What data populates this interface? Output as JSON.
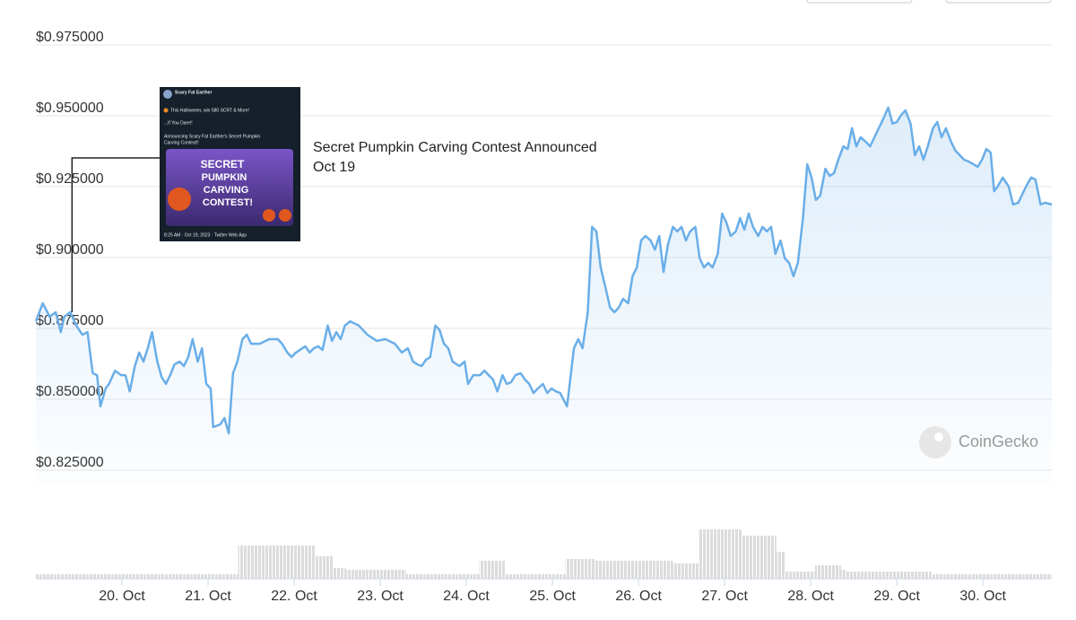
{
  "chart_data": {
    "type": "line",
    "xlim": [
      19,
      30.8
    ],
    "xticks": [
      {
        "value": 20,
        "label": "20. Oct"
      },
      {
        "value": 21,
        "label": "21. Oct"
      },
      {
        "value": 22,
        "label": "22. Oct"
      },
      {
        "value": 23,
        "label": "23. Oct"
      },
      {
        "value": 24,
        "label": "24. Oct"
      },
      {
        "value": 25,
        "label": "25. Oct"
      },
      {
        "value": 26,
        "label": "26. Oct"
      },
      {
        "value": 27,
        "label": "27. Oct"
      },
      {
        "value": 28,
        "label": "28. Oct"
      },
      {
        "value": 29,
        "label": "29. Oct"
      },
      {
        "value": 30,
        "label": "30. Oct"
      }
    ],
    "ylim": [
      0.82,
      0.975
    ],
    "yticks": [
      {
        "value": 0.975,
        "label": "$0.975000"
      },
      {
        "value": 0.95,
        "label": "$0.950000"
      },
      {
        "value": 0.925,
        "label": "$0.925000"
      },
      {
        "value": 0.9,
        "label": "$0.900000"
      },
      {
        "value": 0.875,
        "label": "$0.875000"
      },
      {
        "value": 0.85,
        "label": "$0.850000"
      },
      {
        "value": 0.825,
        "label": "$0.825000"
      }
    ],
    "grid": true,
    "series": [
      {
        "color": "#6aaee8",
        "x": [
          19.0,
          19.08,
          19.16,
          19.23,
          19.29,
          19.33,
          19.4,
          19.47,
          19.54,
          19.6,
          19.66,
          19.71,
          19.75,
          19.81,
          19.85,
          19.92,
          19.99,
          20.04,
          20.09,
          20.15,
          20.2,
          20.25,
          20.3,
          20.35,
          20.41,
          20.46,
          20.51,
          20.56,
          20.61,
          20.67,
          20.72,
          20.77,
          20.82,
          20.88,
          20.93,
          20.98,
          21.03,
          21.06,
          21.14,
          21.19,
          21.24,
          21.29,
          21.34,
          21.4,
          21.45,
          21.5,
          21.6,
          21.71,
          21.81,
          21.86,
          21.92,
          21.97,
          22.02,
          22.13,
          22.18,
          22.23,
          22.28,
          22.33,
          22.39,
          22.44,
          22.49,
          22.54,
          22.59,
          22.65,
          22.75,
          22.85,
          22.96,
          23.06,
          23.17,
          23.25,
          23.32,
          23.38,
          23.43,
          23.48,
          23.53,
          23.58,
          23.64,
          23.69,
          23.74,
          23.79,
          23.84,
          23.92,
          23.98,
          24.02,
          24.08,
          24.16,
          24.21,
          24.26,
          24.31,
          24.36,
          24.42,
          24.47,
          24.52,
          24.57,
          24.63,
          24.68,
          24.73,
          24.78,
          24.83,
          24.89,
          24.94,
          24.99,
          25.04,
          25.09,
          25.17,
          25.25,
          25.3,
          25.35,
          25.41,
          25.46,
          25.51,
          25.56,
          25.61,
          25.67,
          25.72,
          25.77,
          25.82,
          25.88,
          25.93,
          25.98,
          26.03,
          26.08,
          26.14,
          26.19,
          26.24,
          26.29,
          26.34,
          26.4,
          26.45,
          26.5,
          26.55,
          26.6,
          26.66,
          26.71,
          26.76,
          26.81,
          26.86,
          26.92,
          26.97,
          27.02,
          27.07,
          27.13,
          27.18,
          27.23,
          27.28,
          27.33,
          27.39,
          27.44,
          27.49,
          27.54,
          27.59,
          27.65,
          27.7,
          27.75,
          27.8,
          27.85,
          27.91,
          27.96,
          28.01,
          28.06,
          28.11,
          28.17,
          28.22,
          28.27,
          28.32,
          28.38,
          28.43,
          28.48,
          28.53,
          28.58,
          28.64,
          28.69,
          28.74,
          28.79,
          28.84,
          28.9,
          28.95,
          29.0,
          29.05,
          29.1,
          29.16,
          29.21,
          29.26,
          29.31,
          29.36,
          29.42,
          29.47,
          29.52,
          29.57,
          29.63,
          29.68,
          29.73,
          29.78,
          29.83,
          29.89,
          29.94,
          29.99,
          30.04,
          30.09,
          30.13,
          30.17,
          30.23,
          30.3,
          30.35,
          30.41,
          30.46,
          30.51,
          30.56,
          30.61,
          30.67,
          30.72,
          30.8
        ],
        "values": [
          0.8775,
          0.8839,
          0.8791,
          0.8807,
          0.8737,
          0.8791,
          0.8807,
          0.876,
          0.8728,
          0.8737,
          0.8592,
          0.8585,
          0.8475,
          0.8538,
          0.8554,
          0.8601,
          0.8585,
          0.8585,
          0.8528,
          0.8617,
          0.8665,
          0.8633,
          0.868,
          0.8737,
          0.8633,
          0.8579,
          0.8554,
          0.8585,
          0.8623,
          0.8633,
          0.8617,
          0.8649,
          0.8712,
          0.8633,
          0.868,
          0.8554,
          0.8538,
          0.8402,
          0.8411,
          0.8434,
          0.838,
          0.8592,
          0.8633,
          0.8712,
          0.8728,
          0.8696,
          0.8696,
          0.8712,
          0.8712,
          0.8696,
          0.8665,
          0.8649,
          0.8665,
          0.8687,
          0.8665,
          0.868,
          0.8687,
          0.8674,
          0.876,
          0.8706,
          0.8737,
          0.8712,
          0.876,
          0.8775,
          0.876,
          0.8728,
          0.8706,
          0.8712,
          0.8696,
          0.8665,
          0.868,
          0.8633,
          0.8623,
          0.8617,
          0.8639,
          0.8649,
          0.876,
          0.8744,
          0.8696,
          0.868,
          0.8633,
          0.8617,
          0.8633,
          0.8554,
          0.8585,
          0.8585,
          0.8601,
          0.8585,
          0.857,
          0.8528,
          0.8585,
          0.8554,
          0.856,
          0.8585,
          0.8592,
          0.857,
          0.8554,
          0.8522,
          0.8538,
          0.8554,
          0.8522,
          0.8538,
          0.8528,
          0.8522,
          0.8475,
          0.868,
          0.8712,
          0.868,
          0.8807,
          0.9108,
          0.9092,
          0.8965,
          0.8902,
          0.8823,
          0.8807,
          0.8823,
          0.8854,
          0.8839,
          0.8934,
          0.8965,
          0.906,
          0.9076,
          0.906,
          0.9028,
          0.9076,
          0.8949,
          0.9044,
          0.9108,
          0.9092,
          0.9108,
          0.906,
          0.9092,
          0.9108,
          0.8997,
          0.8965,
          0.8981,
          0.8965,
          0.9013,
          0.9155,
          0.9123,
          0.9076,
          0.9092,
          0.9139,
          0.9098,
          0.9155,
          0.9108,
          0.9076,
          0.9108,
          0.9092,
          0.9108,
          0.9013,
          0.906,
          0.8997,
          0.8981,
          0.8934,
          0.8981,
          0.9139,
          0.9329,
          0.9282,
          0.9203,
          0.9218,
          0.9313,
          0.9288,
          0.9297,
          0.9345,
          0.9392,
          0.9383,
          0.9456,
          0.9392,
          0.9424,
          0.9408,
          0.9392,
          0.9424,
          0.9456,
          0.9487,
          0.9529,
          0.9472,
          0.9478,
          0.9503,
          0.9519,
          0.9472,
          0.9361,
          0.9392,
          0.9345,
          0.9392,
          0.9456,
          0.9478,
          0.9424,
          0.9456,
          0.9408,
          0.9377,
          0.9361,
          0.9345,
          0.9339,
          0.9329,
          0.932,
          0.9345,
          0.9383,
          0.937,
          0.9234,
          0.925,
          0.9282,
          0.925,
          0.9187,
          0.9193,
          0.9225,
          0.9256,
          0.9282,
          0.9275,
          0.9187,
          0.9193,
          0.9187
        ]
      }
    ],
    "volume": {
      "bins": [
        19.0,
        21.35,
        22.25,
        22.45,
        22.6,
        23.3,
        24.15,
        24.45,
        25.15,
        25.5,
        26.4,
        26.7,
        27.2,
        27.6,
        27.7,
        28.05,
        28.35,
        28.4,
        29.4,
        30.8
      ],
      "values": [
        5,
        37,
        25,
        12,
        10,
        5,
        20,
        5,
        22,
        20,
        17,
        55,
        48,
        30,
        8,
        15,
        10,
        8,
        5
      ]
    },
    "annotation": {
      "x": 19.42,
      "title": "Secret Pumpkin Carving Contest Announced",
      "date": "Oct 19",
      "image_texts": [
        "Scary Fat Earther",
        "This Halloween, win 580 SCRT & More!",
        "...If You Dare!!",
        "Announcing Scary Fat Earther's Secret Pumpkin",
        "Carving Contest!!",
        "SECRET",
        "PUMPKIN",
        "CARVING",
        "CONTEST!",
        "8:25 AM · Oct 19, 2023 · Twitter Web App"
      ]
    },
    "watermark": "CoinGecko"
  }
}
